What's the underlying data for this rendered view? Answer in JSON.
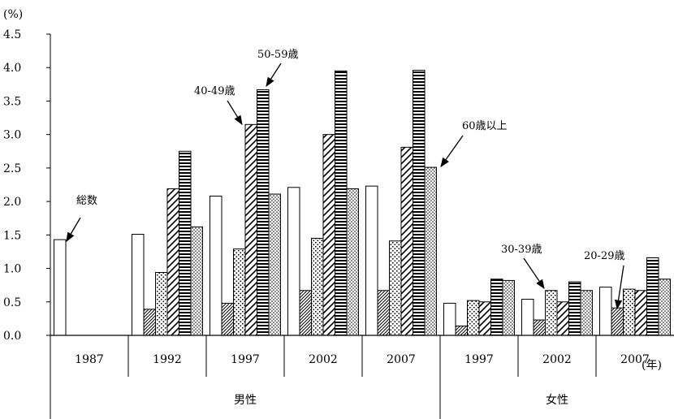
{
  "chart_data": {
    "type": "bar",
    "y_unit": "(%)",
    "x_unit": "(年)",
    "ylim": [
      0,
      4.5
    ],
    "y_ticks": [
      "0.0",
      "0.5",
      "1.0",
      "1.5",
      "2.0",
      "2.5",
      "3.0",
      "3.5",
      "4.0",
      "4.5"
    ],
    "grid": false,
    "series_order": [
      "総数",
      "20-29歳",
      "30-39歳",
      "40-49歳",
      "50-59歳",
      "60歳以上"
    ],
    "groups": [
      {
        "name": "男性",
        "categories": [
          {
            "year": "1987",
            "values": [
              1.43,
              null,
              null,
              null,
              null,
              null
            ]
          },
          {
            "year": "1992",
            "values": [
              1.51,
              0.39,
              0.94,
              2.19,
              2.75,
              1.62
            ]
          },
          {
            "year": "1997",
            "values": [
              2.08,
              0.48,
              1.29,
              3.15,
              3.67,
              2.11
            ]
          },
          {
            "year": "2002",
            "values": [
              2.21,
              0.67,
              1.45,
              3.0,
              3.95,
              2.19
            ]
          },
          {
            "year": "2007",
            "values": [
              2.23,
              0.67,
              1.41,
              2.81,
              3.96,
              2.51
            ]
          }
        ]
      },
      {
        "name": "女性",
        "categories": [
          {
            "year": "1997",
            "values": [
              0.48,
              0.14,
              0.52,
              0.5,
              0.84,
              0.82
            ]
          },
          {
            "year": "2002",
            "values": [
              0.54,
              0.23,
              0.67,
              0.5,
              0.8,
              0.67
            ]
          },
          {
            "year": "2007",
            "values": [
              0.72,
              0.41,
              0.69,
              0.67,
              1.16,
              0.84
            ]
          }
        ]
      }
    ],
    "annotations": [
      "総数",
      "40-49歳",
      "50-59歳",
      "60歳以上",
      "30-39歳",
      "20-29歳"
    ]
  }
}
